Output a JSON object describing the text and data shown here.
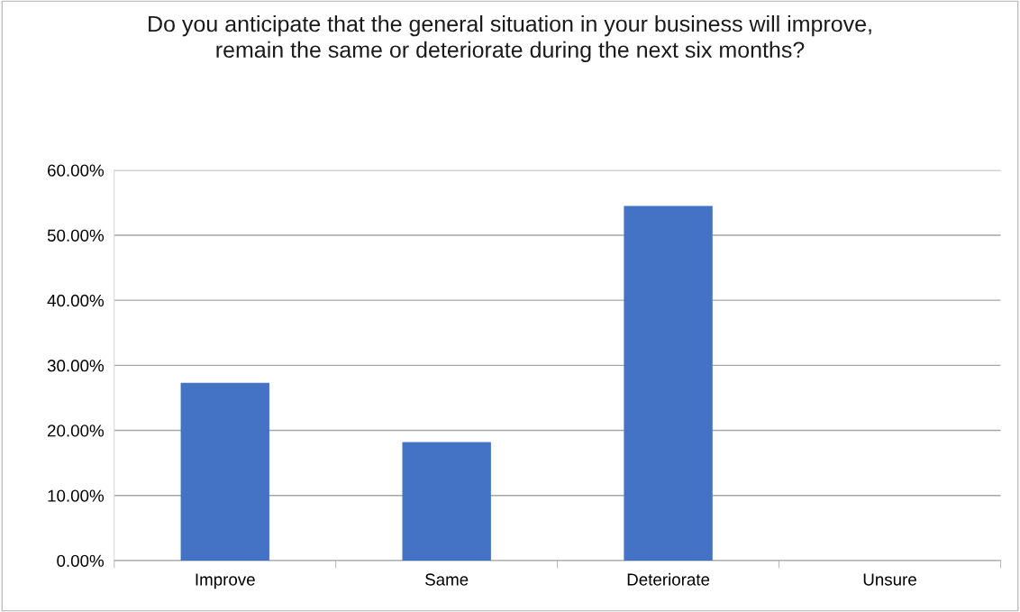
{
  "chart_data": {
    "type": "bar",
    "title": "Do you anticipate that the general situation in your business will improve, remain the same or deteriorate during the next six months?",
    "categories": [
      "Improve",
      "Same",
      "Deteriorate",
      "Unsure"
    ],
    "values": [
      27.3,
      18.2,
      54.5,
      0
    ],
    "color": "#4472c4",
    "ylim": [
      0,
      60
    ],
    "yticks": [
      {
        "value": 0,
        "label": "0.00%"
      },
      {
        "value": 10,
        "label": "10.00%"
      },
      {
        "value": 20,
        "label": "20.00%"
      },
      {
        "value": 30,
        "label": "30.00%"
      },
      {
        "value": 40,
        "label": "40.00%"
      },
      {
        "value": 50,
        "label": "50.00%"
      },
      {
        "value": 60,
        "label": "60.00%"
      }
    ],
    "grid": "y",
    "legend": false
  }
}
